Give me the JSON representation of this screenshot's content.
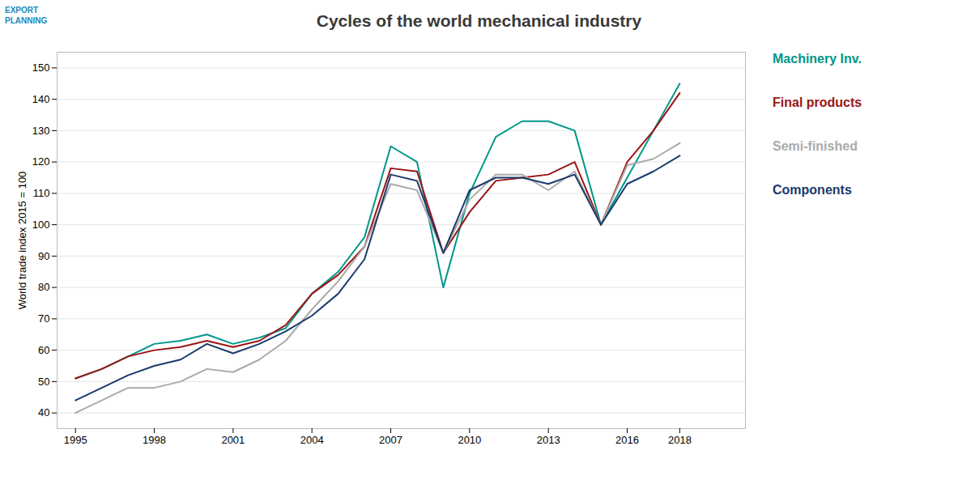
{
  "chart_data": {
    "type": "line",
    "title": "Cycles of the world mechanical industry",
    "ylabel": "World trade index 2015 = 100",
    "x": [
      1995,
      1996,
      1997,
      1998,
      1999,
      2000,
      2001,
      2002,
      2003,
      2004,
      2005,
      2006,
      2007,
      2008,
      2009,
      2010,
      2011,
      2012,
      2013,
      2014,
      2015,
      2016,
      2017,
      2018
    ],
    "series": [
      {
        "name": "Machinery Inv.",
        "color": "#00968A",
        "values": [
          51,
          54,
          58,
          62,
          63,
          65,
          62,
          64,
          67,
          78,
          85,
          96,
          125,
          120,
          80,
          110,
          128,
          133,
          133,
          130,
          100,
          115,
          130,
          145
        ]
      },
      {
        "name": "Final products",
        "color": "#9B1515",
        "values": [
          51,
          54,
          58,
          60,
          61,
          63,
          61,
          63,
          68,
          78,
          84,
          93,
          118,
          117,
          91,
          104,
          114,
          115,
          116,
          120,
          100,
          120,
          130,
          142
        ]
      },
      {
        "name": "Semi-finished",
        "color": "#AAAAAA",
        "values": [
          40,
          44,
          48,
          48,
          50,
          54,
          53,
          57,
          63,
          73,
          82,
          93,
          113,
          111,
          91,
          108,
          116,
          116,
          111,
          117,
          100,
          119,
          121,
          126
        ]
      },
      {
        "name": "Components",
        "color": "#1B3A6B",
        "values": [
          44,
          48,
          52,
          55,
          57,
          62,
          59,
          62,
          66,
          71,
          78,
          89,
          116,
          114,
          91,
          111,
          115,
          115,
          113,
          116,
          100,
          113,
          117,
          122
        ]
      }
    ],
    "xlim": [
      1994.3,
      2020.5
    ],
    "xticks": [
      1995,
      1998,
      2001,
      2004,
      2007,
      2010,
      2013,
      2016,
      2018
    ],
    "ylim": [
      35,
      155
    ],
    "yticks": [
      40,
      50,
      60,
      70,
      80,
      90,
      100,
      110,
      120,
      130,
      140,
      150
    ],
    "grid": true,
    "legend": "right",
    "annotations": [
      {
        "text": "EXPORT\nPLANNING",
        "color": "#2288BB"
      }
    ]
  }
}
